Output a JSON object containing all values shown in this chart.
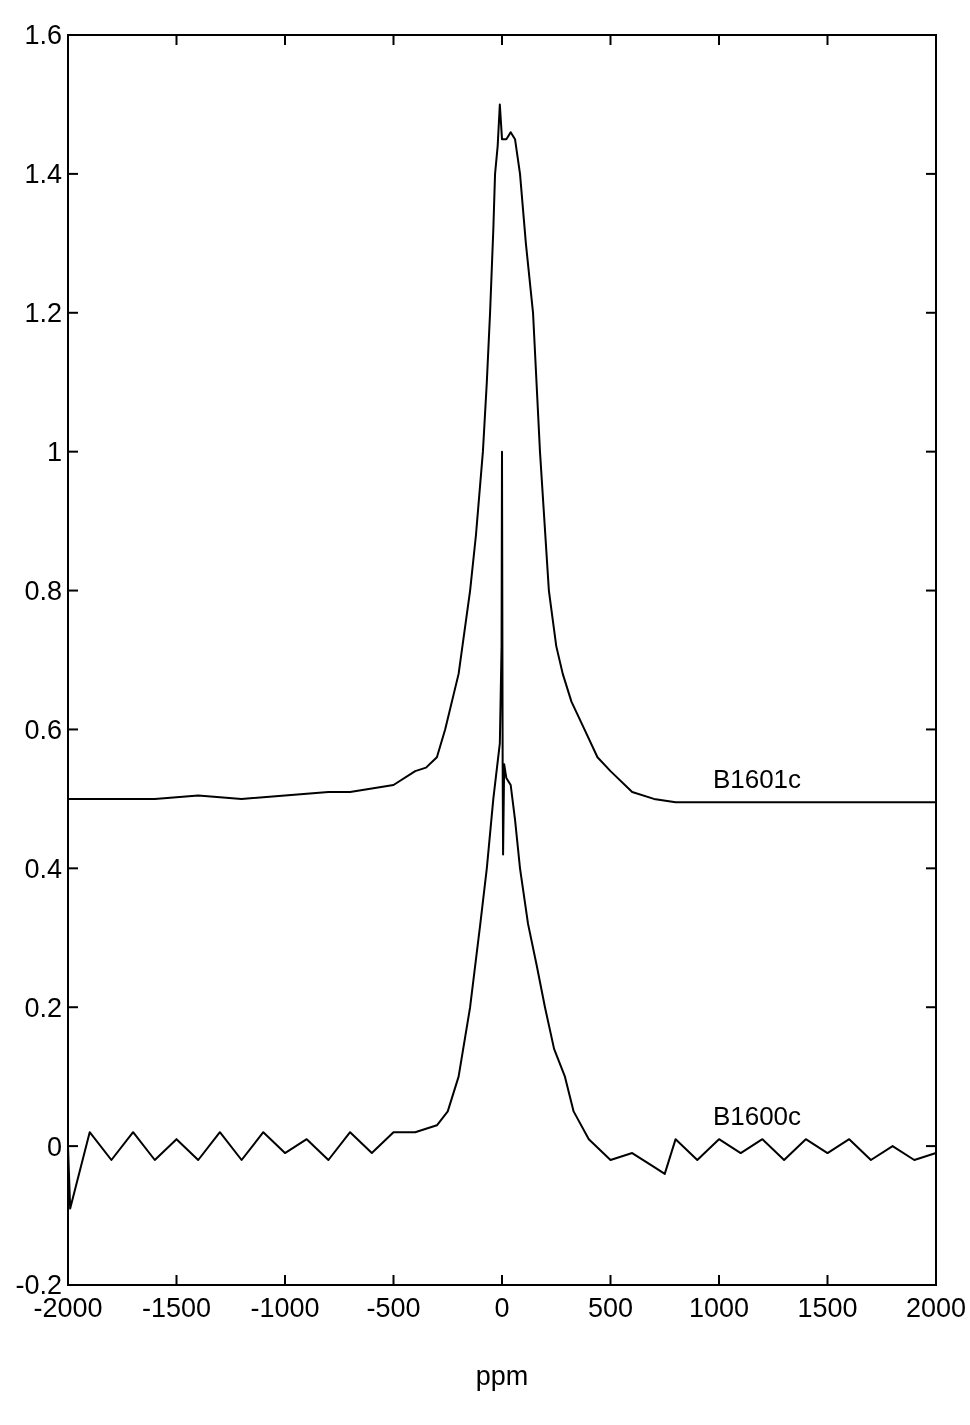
{
  "chart_data": {
    "type": "line",
    "xlabel": "ppm",
    "xlim": [
      -2000,
      2000
    ],
    "xticks": [
      -2000,
      -1500,
      -1000,
      -500,
      0,
      500,
      1000,
      1500,
      2000
    ],
    "ylim": [
      -0.2,
      1.6
    ],
    "yticks": [
      -0.2,
      0,
      0.2,
      0.4,
      0.6,
      0.8,
      1,
      1.2,
      1.4,
      1.6
    ],
    "grid": false,
    "marker": "none",
    "line_style": "solid",
    "series": [
      {
        "name": "B1601c",
        "color": "#000000",
        "x": [
          -2000,
          -1800,
          -1600,
          -1400,
          -1200,
          -1000,
          -800,
          -700,
          -600,
          -500,
          -400,
          -350,
          -300,
          -262,
          -200,
          -147,
          -120,
          -88,
          -70,
          -55,
          -40,
          -32,
          -20,
          -10,
          0,
          20,
          40,
          60,
          83,
          110,
          143,
          175,
          216,
          250,
          280,
          320,
          380,
          440,
          500,
          600,
          700,
          800,
          1000,
          1200,
          1400,
          1600,
          1800,
          2000
        ],
        "values": [
          0.5,
          0.5,
          0.5,
          0.505,
          0.5,
          0.505,
          0.51,
          0.51,
          0.515,
          0.52,
          0.54,
          0.545,
          0.56,
          0.6,
          0.68,
          0.8,
          0.88,
          1.0,
          1.1,
          1.2,
          1.32,
          1.4,
          1.44,
          1.5,
          1.45,
          1.45,
          1.46,
          1.45,
          1.4,
          1.3,
          1.2,
          1.0,
          0.8,
          0.72,
          0.68,
          0.64,
          0.6,
          0.56,
          0.54,
          0.51,
          0.5,
          0.495,
          0.495,
          0.495,
          0.495,
          0.495,
          0.495,
          0.495
        ]
      },
      {
        "name": "B1600c",
        "color": "#000000",
        "x": [
          -2000,
          -1990,
          -1900,
          -1800,
          -1700,
          -1600,
          -1500,
          -1400,
          -1300,
          -1200,
          -1100,
          -1000,
          -900,
          -800,
          -700,
          -600,
          -500,
          -400,
          -300,
          -250,
          -200,
          -147,
          -100,
          -70,
          -40,
          -10,
          -2,
          0,
          3,
          5,
          10,
          20,
          40,
          60,
          83,
          120,
          160,
          198,
          240,
          290,
          330,
          400,
          500,
          600,
          700,
          750,
          800,
          900,
          1000,
          1100,
          1200,
          1300,
          1400,
          1500,
          1600,
          1700,
          1800,
          1900,
          2000
        ],
        "values": [
          0,
          -0.09,
          0.02,
          -0.02,
          0.02,
          -0.02,
          0.01,
          -0.02,
          0.02,
          -0.02,
          0.02,
          -0.01,
          0.01,
          -0.02,
          0.02,
          -0.01,
          0.02,
          0.02,
          0.03,
          0.05,
          0.1,
          0.2,
          0.32,
          0.4,
          0.5,
          0.58,
          0.72,
          1.0,
          0.55,
          0.42,
          0.55,
          0.53,
          0.52,
          0.47,
          0.4,
          0.32,
          0.26,
          0.2,
          0.14,
          0.1,
          0.05,
          0.01,
          -0.02,
          -0.01,
          -0.03,
          -0.04,
          0.01,
          -0.02,
          0.01,
          -0.01,
          0.01,
          -0.02,
          0.01,
          -0.01,
          0.01,
          -0.02,
          0.0,
          -0.02,
          -0.01
        ]
      }
    ]
  }
}
